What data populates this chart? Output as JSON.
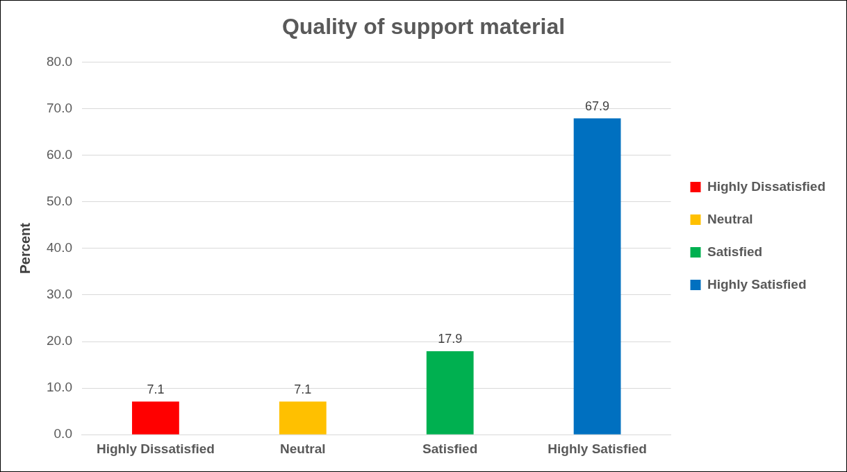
{
  "chart_data": {
    "type": "bar",
    "title": "Quality of support material",
    "ylabel": "Percent",
    "categories": [
      "Highly Dissatisfied",
      "Neutral",
      "Satisfied",
      "Highly Satisfied"
    ],
    "series": [
      {
        "name": "Highly Dissatisfied",
        "color": "#ff0000",
        "values": [
          7.1,
          null,
          null,
          null
        ]
      },
      {
        "name": "Neutral",
        "color": "#ffc000",
        "values": [
          null,
          7.1,
          null,
          null
        ]
      },
      {
        "name": "Satisfied",
        "color": "#00b050",
        "values": [
          null,
          null,
          17.9,
          null
        ]
      },
      {
        "name": "Highly Satisfied",
        "color": "#0070c0",
        "values": [
          null,
          null,
          null,
          67.9
        ]
      }
    ],
    "ylim": [
      0,
      80
    ],
    "yticks": [
      {
        "value": 0,
        "label": "0.0"
      },
      {
        "value": 10,
        "label": "10.0"
      },
      {
        "value": 20,
        "label": "20.0"
      },
      {
        "value": 30,
        "label": "30.0"
      },
      {
        "value": 40,
        "label": "40.0"
      },
      {
        "value": 50,
        "label": "50.0"
      },
      {
        "value": 60,
        "label": "60.0"
      },
      {
        "value": 70,
        "label": "70.0"
      },
      {
        "value": 80,
        "label": "80.0"
      }
    ],
    "grid": "y",
    "legend": "right",
    "data_labels": true
  }
}
